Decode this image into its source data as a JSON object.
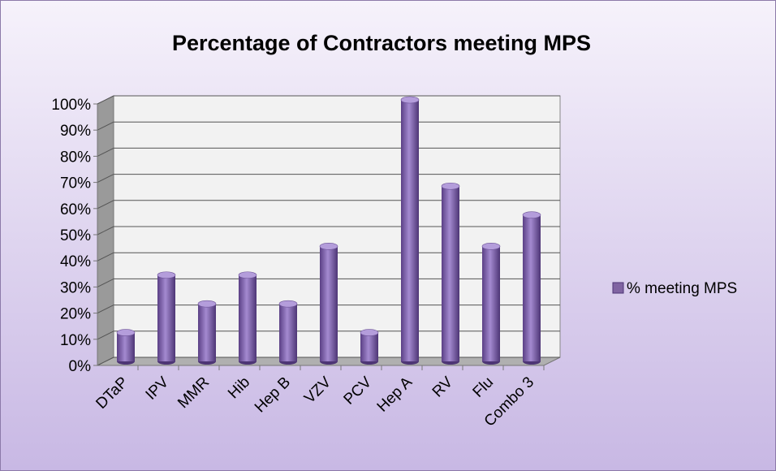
{
  "chart_data": {
    "type": "bar",
    "title": "Percentage of Contractors meeting MPS",
    "categories": [
      "DTaP",
      "IPV",
      "MMR",
      "Hib",
      "Hep B",
      "VZV",
      "PCV",
      "Hep A",
      "RV",
      "Flu",
      "Combo 3"
    ],
    "series": [
      {
        "name": "% meeting MPS",
        "color": "#8064a2",
        "values": [
          11,
          33,
          22,
          33,
          22,
          44,
          11,
          100,
          67,
          44,
          56
        ]
      }
    ],
    "ylim": [
      0,
      100
    ],
    "yticks": [
      {
        "value": 0,
        "label": "0%"
      },
      {
        "value": 10,
        "label": "10%"
      },
      {
        "value": 20,
        "label": "20%"
      },
      {
        "value": 30,
        "label": "30%"
      },
      {
        "value": 40,
        "label": "40%"
      },
      {
        "value": 50,
        "label": "50%"
      },
      {
        "value": 60,
        "label": "60%"
      },
      {
        "value": 70,
        "label": "70%"
      },
      {
        "value": 80,
        "label": "80%"
      },
      {
        "value": 90,
        "label": "90%"
      },
      {
        "value": 100,
        "label": "100%"
      }
    ],
    "grid": true,
    "legend": "right"
  }
}
